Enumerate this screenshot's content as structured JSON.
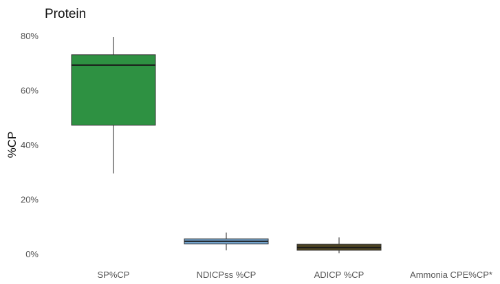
{
  "chart_data": {
    "type": "box",
    "title": "Protein",
    "xlabel": "",
    "ylabel": "%CP",
    "ylim": [
      0,
      80
    ],
    "y_ticks": [
      "0%",
      "20%",
      "40%",
      "60%",
      "80%"
    ],
    "y_tick_values": [
      0,
      20,
      40,
      60,
      80
    ],
    "grid": false,
    "legend": "none",
    "categories": [
      "SP%CP",
      "NDICPss %CP",
      "ADICP %CP",
      "Ammonia CPE%CP*"
    ],
    "boxes": [
      {
        "category": "SP%CP",
        "min": 29.5,
        "q1": 47.2,
        "median": 69.2,
        "q3": 73.0,
        "max": 79.5,
        "color": "#2e9142"
      },
      {
        "category": "NDICPss %CP",
        "min": 1.3,
        "q1": 3.6,
        "median": 4.6,
        "q3": 5.5,
        "max": 7.8,
        "color": "#74a3cc"
      },
      {
        "category": "ADICP %CP",
        "min": 0.2,
        "q1": 1.3,
        "median": 2.3,
        "q3": 3.5,
        "max": 6.0,
        "color": "#4d4322"
      },
      {
        "category": "Ammonia CPE%CP*",
        "min": null,
        "q1": null,
        "median": null,
        "q3": null,
        "max": null,
        "color": "#999999"
      }
    ]
  }
}
